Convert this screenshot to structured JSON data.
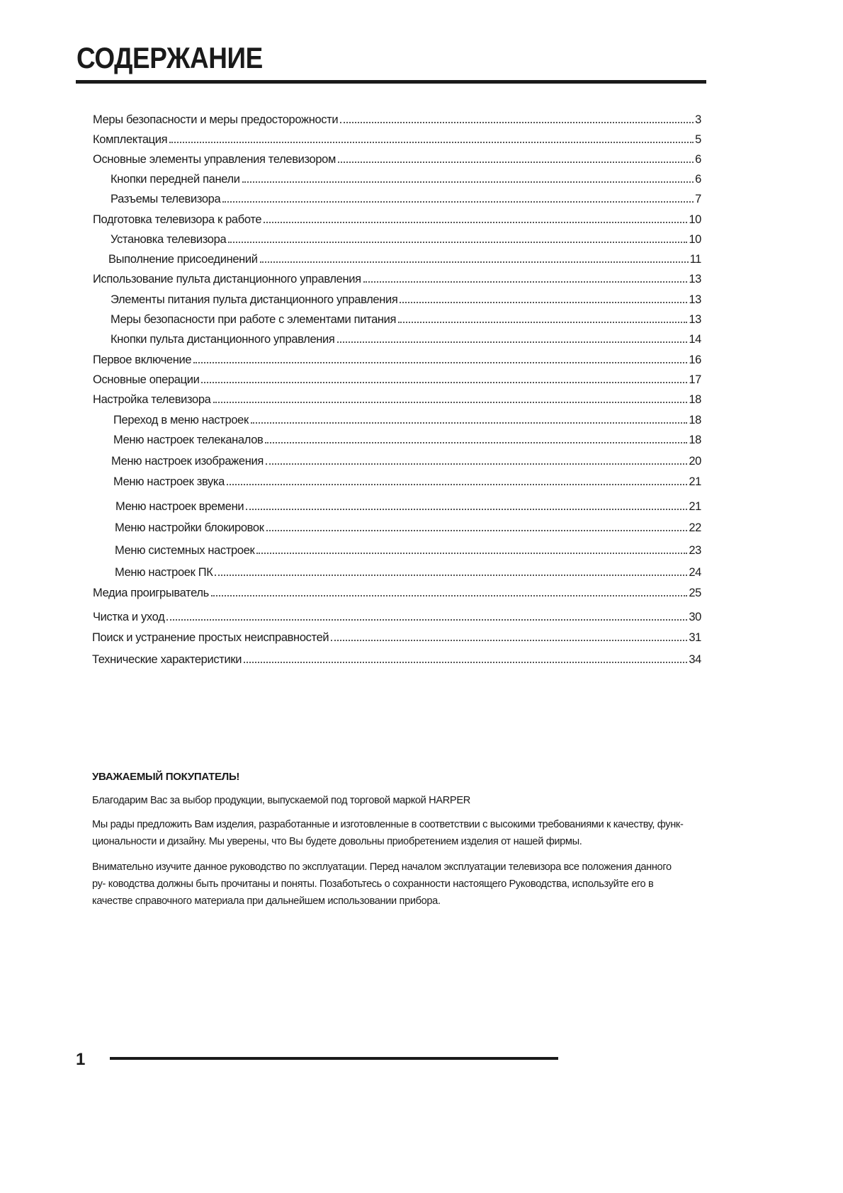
{
  "title": "СОДЕРЖАНИЕ",
  "toc": [
    {
      "label": "Меры безопасности и меры предосторожности",
      "page": "3"
    },
    {
      "label": "Комплектация",
      "page": "5"
    },
    {
      "label": "Основные элементы управления телевизором",
      "page": "6"
    },
    {
      "label": "Кнопки передней панели",
      "page": "6"
    },
    {
      "label": "Разъемы телевизора",
      "page": "7"
    },
    {
      "label": "Подготовка телевизора к работе",
      "page": "10"
    },
    {
      "label": "Установка телевизора",
      "page": "10"
    },
    {
      "label": "Выполнение присоединений",
      "page": "11"
    },
    {
      "label": "Использование пульта дистанционного управления",
      "page": "13"
    },
    {
      "label": "Элементы питания пульта дистанционного управления",
      "page": "13"
    },
    {
      "label": "Меры безопасности при работе с элементами питания",
      "page": "13"
    },
    {
      "label": "Кнопки пульта дистанционного управления",
      "page": "14"
    },
    {
      "label": "Первое включение",
      "page": "16"
    },
    {
      "label": "Основные операции",
      "page": "17"
    },
    {
      "label": "Настройка телевизора",
      "page": "18"
    },
    {
      "label": "Переход в меню настроек",
      "page": "18"
    },
    {
      "label": "Меню настроек телеканалов",
      "page": "18"
    },
    {
      "label": "Меню настроек изображения",
      "page": "20"
    },
    {
      "label": "Меню настроек звука",
      "page": "21"
    },
    {
      "label": "Меню настроек времени",
      "page": "21"
    },
    {
      "label": "Меню настройки блокировок",
      "page": "22"
    },
    {
      "label": "Меню системных настроек",
      "page": "23"
    },
    {
      "label": "Меню настроек ПК",
      "page": "24"
    },
    {
      "label": "Медиа проигрыватель",
      "page": "25"
    },
    {
      "label": "Чистка и уход",
      "page": "30"
    },
    {
      "label": "Поиск и устранение простых неисправностей",
      "page": "31"
    },
    {
      "label": "Технические характеристики",
      "page": "34"
    }
  ],
  "greeting": {
    "heading": "УВАЖАЕМЫЙ ПОКУПАТЕЛЬ!",
    "paragraphs": [
      "Благодарим Вас за выбор продукции, выпускаемой под торговой маркой HARPER",
      "Мы рады предложить Вам изделия, разработанные и изготовленные в соответствии с высокими требованиями к качеству, функ- циональности и дизайну. Мы уверены, что Вы будете довольны приобретением изделия от нашей фирмы.",
      "Внимательно изучите данное руководство по эксплуатации. Перед началом эксплуатации телевизора все положения данного ру- ководства должны быть прочитаны и поняты. Позаботьтесь о сохранности настоящего Руководства, используйте его в   качестве  справочного материала при дальнейшем использовании прибора."
    ]
  },
  "footer": {
    "page_number": "1"
  }
}
